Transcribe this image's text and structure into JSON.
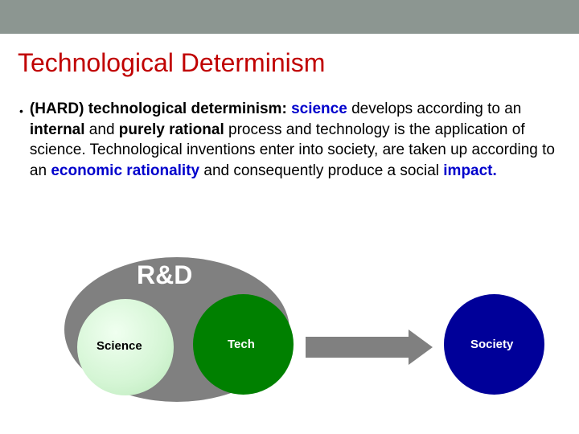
{
  "slide": {
    "title": "Technological Determinism",
    "bullet_lead": "(HARD) technological determinism:",
    "kw_science": "science",
    "text1": " develops according to an ",
    "kw_internal": "internal",
    "text2": " and ",
    "kw_rational": "purely rational",
    "text3": " process and technology is the application of science. Technological inventions enter into society, are taken up according to an ",
    "kw_economic": "economic rationality",
    "text4": " and consequently produce a social ",
    "kw_impact": "impact.",
    "top_bar_color": "#8c9691",
    "title_color": "#c00000"
  },
  "diagram": {
    "type": "flowchart",
    "rd_label": "R&D",
    "rd_ellipse_color": "#808080",
    "science": {
      "label": "Science",
      "fill": "#d4f5d4",
      "text_color": "#000000"
    },
    "tech": {
      "label": "Tech",
      "fill": "#008000",
      "text_color": "#ffffff"
    },
    "society": {
      "label": "Society",
      "fill": "#000099",
      "text_color": "#ffffff"
    },
    "arrow_color": "#808080"
  }
}
